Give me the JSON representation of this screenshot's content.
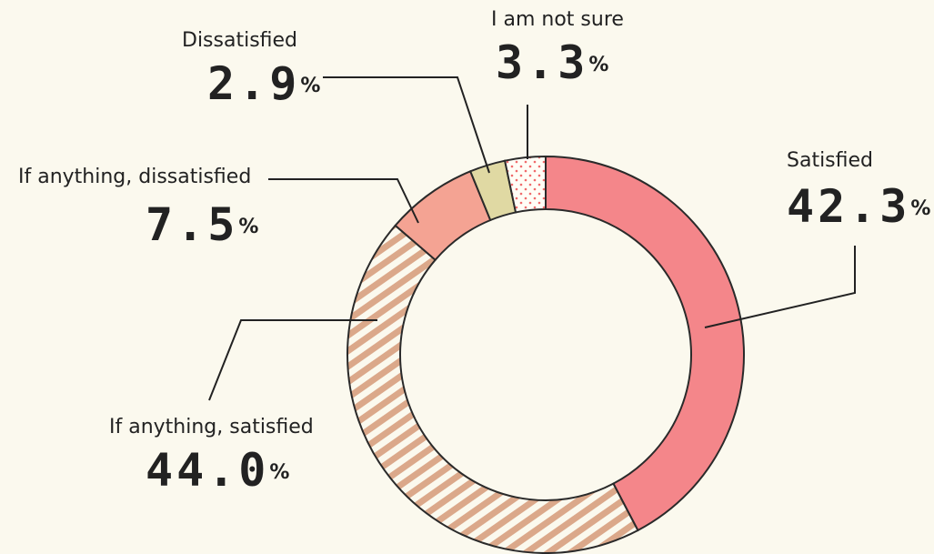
{
  "chart_data": {
    "type": "donut",
    "categories": [
      "Satisfied",
      "If anything, satisfied",
      "If anything, dissatisfied",
      "Dissatisfied",
      "I am not sure"
    ],
    "values": [
      42.3,
      44.0,
      7.5,
      2.9,
      3.3
    ],
    "value_labels": [
      "42.3%",
      "44.0%",
      "7.5%",
      "2.9%",
      "3.3%"
    ],
    "colors": [
      "#f4868a",
      "#dba88a",
      "#f4a393",
      "#e0d9a3",
      "#f06b6b"
    ],
    "patterns": [
      "solid",
      "stripes",
      "solid",
      "solid",
      "dots"
    ]
  }
}
